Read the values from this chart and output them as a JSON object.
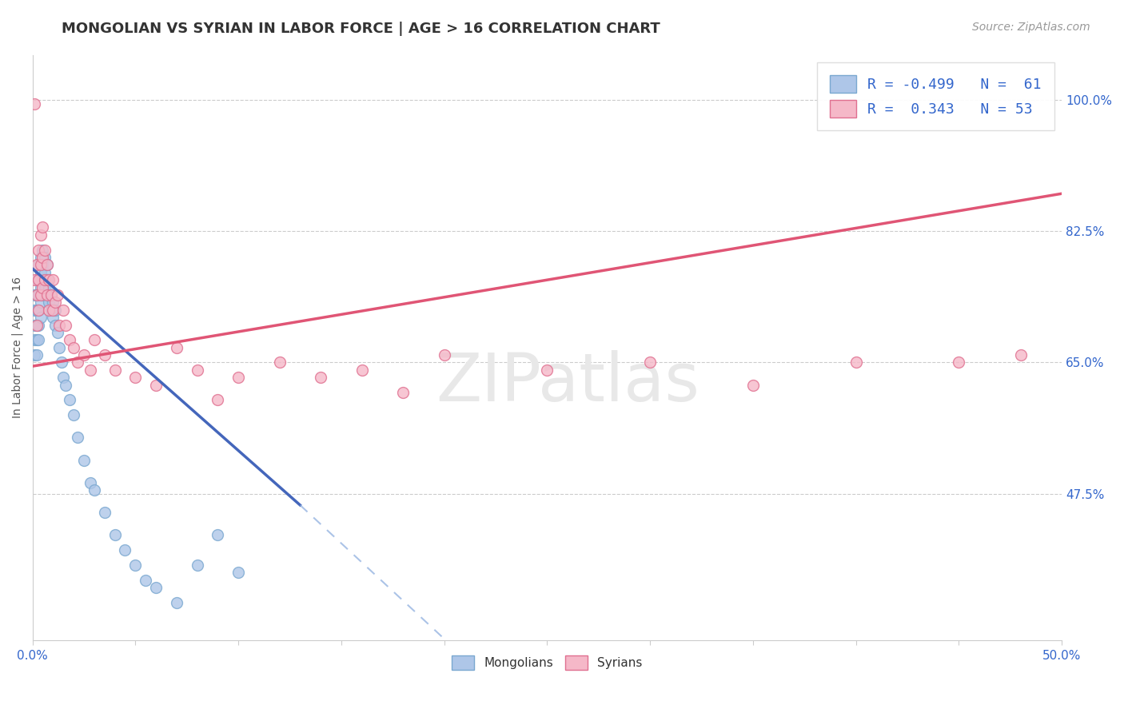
{
  "title": "MONGOLIAN VS SYRIAN IN LABOR FORCE | AGE > 16 CORRELATION CHART",
  "source": "Source: ZipAtlas.com",
  "ylabel": "In Labor Force | Age > 16",
  "xlim": [
    0.0,
    0.5
  ],
  "ylim": [
    0.28,
    1.06
  ],
  "xticks": [
    0.0,
    0.05,
    0.1,
    0.15,
    0.2,
    0.25,
    0.3,
    0.35,
    0.4,
    0.45,
    0.5
  ],
  "xticklabels_show": [
    "0.0%",
    "",
    "",
    "",
    "",
    "",
    "",
    "",
    "",
    "",
    "50.0%"
  ],
  "yticks": [
    0.475,
    0.65,
    0.825,
    1.0
  ],
  "yticklabels": [
    "47.5%",
    "65.0%",
    "82.5%",
    "100.0%"
  ],
  "grid_color": "#cccccc",
  "bg_color": "#ffffff",
  "mongolian_color": "#aec6e8",
  "syrian_color": "#f5b8c8",
  "mongolian_edge": "#7aa8d0",
  "syrian_edge": "#e07090",
  "trend_mongolian_color": "#4466bb",
  "trend_mongolian_dashed_color": "#88aadd",
  "trend_syrian_color": "#e05575",
  "R_mongolian": -0.499,
  "N_mongolian": 61,
  "R_syrian": 0.343,
  "N_syrian": 53,
  "mongolian_x": [
    0.001,
    0.001,
    0.001,
    0.001,
    0.001,
    0.002,
    0.002,
    0.002,
    0.002,
    0.002,
    0.002,
    0.003,
    0.003,
    0.003,
    0.003,
    0.003,
    0.003,
    0.004,
    0.004,
    0.004,
    0.004,
    0.004,
    0.005,
    0.005,
    0.005,
    0.005,
    0.006,
    0.006,
    0.006,
    0.007,
    0.007,
    0.007,
    0.008,
    0.008,
    0.009,
    0.009,
    0.01,
    0.01,
    0.011,
    0.011,
    0.012,
    0.013,
    0.014,
    0.015,
    0.016,
    0.018,
    0.02,
    0.022,
    0.025,
    0.028,
    0.03,
    0.035,
    0.04,
    0.045,
    0.05,
    0.055,
    0.06,
    0.07,
    0.08,
    0.09,
    0.1
  ],
  "mongolian_y": [
    0.74,
    0.72,
    0.7,
    0.68,
    0.66,
    0.76,
    0.74,
    0.72,
    0.7,
    0.68,
    0.66,
    0.78,
    0.76,
    0.74,
    0.72,
    0.7,
    0.68,
    0.79,
    0.77,
    0.75,
    0.73,
    0.71,
    0.8,
    0.78,
    0.76,
    0.74,
    0.79,
    0.77,
    0.75,
    0.78,
    0.76,
    0.74,
    0.75,
    0.73,
    0.74,
    0.72,
    0.73,
    0.71,
    0.72,
    0.7,
    0.69,
    0.67,
    0.65,
    0.63,
    0.62,
    0.6,
    0.58,
    0.55,
    0.52,
    0.49,
    0.48,
    0.45,
    0.42,
    0.4,
    0.38,
    0.36,
    0.35,
    0.33,
    0.38,
    0.42,
    0.37
  ],
  "syrian_x": [
    0.001,
    0.001,
    0.002,
    0.002,
    0.002,
    0.003,
    0.003,
    0.003,
    0.004,
    0.004,
    0.004,
    0.005,
    0.005,
    0.005,
    0.006,
    0.006,
    0.007,
    0.007,
    0.008,
    0.008,
    0.009,
    0.01,
    0.01,
    0.011,
    0.012,
    0.013,
    0.015,
    0.016,
    0.018,
    0.02,
    0.022,
    0.025,
    0.028,
    0.03,
    0.035,
    0.04,
    0.05,
    0.06,
    0.07,
    0.08,
    0.09,
    0.1,
    0.12,
    0.14,
    0.16,
    0.18,
    0.2,
    0.25,
    0.3,
    0.35,
    0.4,
    0.45,
    0.48
  ],
  "syrian_y": [
    0.995,
    0.76,
    0.78,
    0.74,
    0.7,
    0.8,
    0.76,
    0.72,
    0.82,
    0.78,
    0.74,
    0.83,
    0.79,
    0.75,
    0.8,
    0.76,
    0.78,
    0.74,
    0.76,
    0.72,
    0.74,
    0.76,
    0.72,
    0.73,
    0.74,
    0.7,
    0.72,
    0.7,
    0.68,
    0.67,
    0.65,
    0.66,
    0.64,
    0.68,
    0.66,
    0.64,
    0.63,
    0.62,
    0.67,
    0.64,
    0.6,
    0.63,
    0.65,
    0.63,
    0.64,
    0.61,
    0.66,
    0.64,
    0.65,
    0.62,
    0.65,
    0.65,
    0.66
  ],
  "watermark": "ZIPatlas",
  "title_fontsize": 13,
  "label_fontsize": 10,
  "tick_fontsize": 11,
  "legend_fontsize": 13,
  "marker_size": 100
}
